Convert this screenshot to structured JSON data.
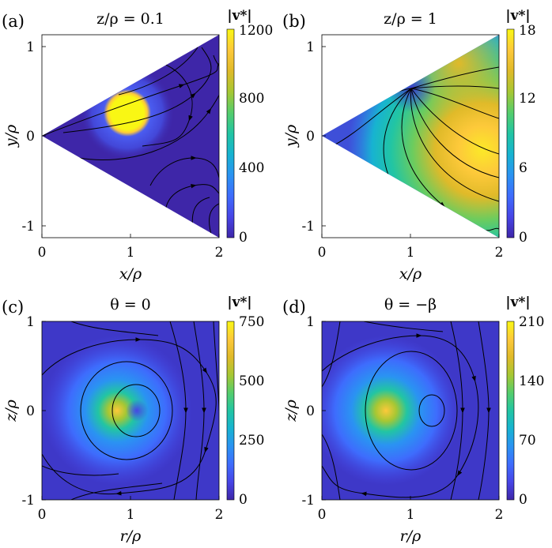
{
  "colormap": [
    "#3e26a8",
    "#4745e6",
    "#3e6cfd",
    "#2a93f2",
    "#17b3d1",
    "#22c5a3",
    "#55cd6c",
    "#a7c733",
    "#e0ba29",
    "#fdc93a",
    "#f9f714"
  ],
  "chart_data": [
    {
      "type": "heatmap",
      "panel_label": "(a)",
      "title": "z/ρ = 0.1",
      "xlabel": "x/ρ",
      "ylabel": "y/ρ",
      "xlim": [
        0,
        2
      ],
      "ylim": [
        -1.15,
        1.15
      ],
      "xticks": [
        "0",
        "1",
        "2"
      ],
      "yticks": [
        "-1",
        "0",
        "1"
      ],
      "domain": "wedge",
      "colorbar": {
        "label": "|v*|",
        "range": [
          0,
          1200
        ],
        "ticks": [
          "0",
          "400",
          "800",
          "1200"
        ]
      },
      "features": [
        {
          "kind": "hotspot",
          "x": 0.95,
          "y": 0.25,
          "radius": 0.2,
          "value": 1200
        }
      ]
    },
    {
      "type": "heatmap",
      "panel_label": "(b)",
      "title": "z/ρ = 1",
      "xlabel": "x/ρ",
      "ylabel": "y/ρ",
      "xlim": [
        0,
        2
      ],
      "ylim": [
        -1.15,
        1.15
      ],
      "xticks": [
        "0",
        "1",
        "2"
      ],
      "yticks": [
        "-1",
        "0",
        "1"
      ],
      "domain": "wedge",
      "colorbar": {
        "label": "|v*|",
        "range": [
          0,
          18
        ],
        "ticks": [
          "0",
          "6",
          "12",
          "18"
        ]
      },
      "features": [
        {
          "kind": "broad-max",
          "x": 1.8,
          "y": -0.2,
          "value": 18
        },
        {
          "kind": "stagnation",
          "x": 1.0,
          "y": 0.55
        }
      ]
    },
    {
      "type": "heatmap",
      "panel_label": "(c)",
      "title": "θ = 0",
      "xlabel": "r/ρ",
      "ylabel": "z/ρ",
      "xlim": [
        0,
        2
      ],
      "ylim": [
        -1,
        1
      ],
      "xticks": [
        "0",
        "1",
        "2"
      ],
      "yticks": [
        "-1",
        "0",
        "1"
      ],
      "domain": "rect",
      "colorbar": {
        "label": "|v*|",
        "range": [
          0,
          750
        ],
        "ticks": [
          "0",
          "250",
          "500",
          "750"
        ]
      },
      "features": [
        {
          "kind": "max",
          "x": 0.85,
          "y": 0.0,
          "value": 750
        },
        {
          "kind": "vortex-center",
          "x": 1.05,
          "y": 0.0
        }
      ]
    },
    {
      "type": "heatmap",
      "panel_label": "(d)",
      "title": "θ = −β",
      "xlabel": "r/ρ",
      "ylabel": "z/ρ",
      "xlim": [
        0,
        2
      ],
      "ylim": [
        -1,
        1
      ],
      "xticks": [
        "0",
        "1",
        "2"
      ],
      "yticks": [
        "-1",
        "0",
        "1"
      ],
      "domain": "rect",
      "colorbar": {
        "label": "|v*|",
        "range": [
          0,
          210
        ],
        "ticks": [
          "0",
          "70",
          "140",
          "210"
        ]
      },
      "features": [
        {
          "kind": "max",
          "x": 0.72,
          "y": 0.0,
          "value": 210
        },
        {
          "kind": "vortex-center",
          "x": 1.25,
          "y": 0.0
        }
      ]
    }
  ]
}
